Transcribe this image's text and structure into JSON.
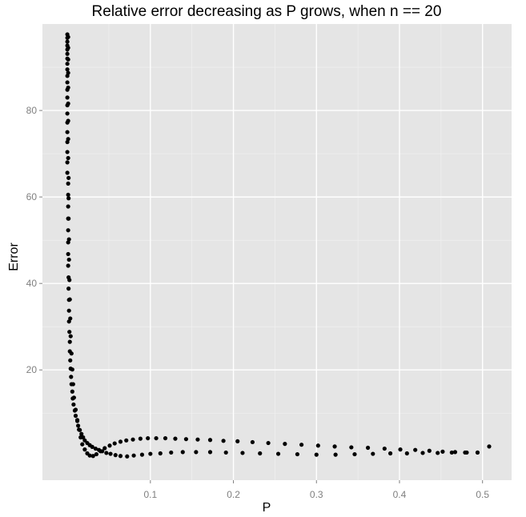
{
  "chart_data": {
    "type": "scatter",
    "title": "Relative error decreasing as P grows, when n == 20",
    "xlabel": "P",
    "ylabel": "Error",
    "xlim": [
      -0.03,
      0.535
    ],
    "ylim": [
      -5.5,
      100
    ],
    "xticks": [
      0.1,
      0.2,
      0.3,
      0.4,
      0.5
    ],
    "xtick_labels": [
      "0.1",
      "0.2",
      "0.3",
      "0.4",
      "0.5"
    ],
    "yticks": [
      20,
      40,
      60,
      80
    ],
    "ytick_labels": [
      "20",
      "40",
      "60",
      "80"
    ],
    "grid": true,
    "background": "#e5e5e5",
    "grid_color": "#ffffff",
    "point_color": "#000000",
    "series": [
      {
        "points": [
          [
            0.0,
            97.6
          ],
          [
            0.0,
            96.8
          ],
          [
            0.0,
            95.9
          ],
          [
            0.0,
            95.0
          ],
          [
            0.0,
            94.1
          ],
          [
            0.0,
            93.1
          ],
          [
            0.0,
            92.0
          ],
          [
            0.0,
            90.8
          ],
          [
            0.0,
            89.5
          ],
          [
            0.0,
            88.0
          ],
          [
            0.0,
            86.5
          ],
          [
            0.0,
            84.8
          ],
          [
            0.0,
            83.0
          ],
          [
            0.0,
            81.2
          ],
          [
            0.0,
            79.3
          ],
          [
            0.0,
            77.2
          ],
          [
            0.0,
            75.0
          ],
          [
            0.0,
            72.7
          ],
          [
            0.0,
            70.4
          ],
          [
            0.0,
            68.0
          ],
          [
            0.0,
            65.6
          ],
          [
            0.001,
            63.1
          ],
          [
            0.001,
            60.5
          ],
          [
            0.001,
            57.8
          ],
          [
            0.001,
            55.0
          ],
          [
            0.001,
            52.3
          ],
          [
            0.001,
            49.5
          ],
          [
            0.001,
            46.8
          ],
          [
            0.001,
            44.1
          ],
          [
            0.0015,
            41.4
          ],
          [
            0.0015,
            38.8
          ],
          [
            0.002,
            36.2
          ],
          [
            0.002,
            33.7
          ],
          [
            0.002,
            31.2
          ],
          [
            0.0025,
            28.8
          ],
          [
            0.003,
            26.5
          ],
          [
            0.003,
            24.3
          ],
          [
            0.0035,
            22.2
          ],
          [
            0.004,
            20.3
          ],
          [
            0.0045,
            18.4
          ],
          [
            0.005,
            16.7
          ],
          [
            0.006,
            15.0
          ],
          [
            0.0065,
            13.4
          ],
          [
            0.0075,
            12.0
          ],
          [
            0.009,
            10.6
          ],
          [
            0.01,
            9.4
          ],
          [
            0.012,
            8.2
          ],
          [
            0.013,
            7.1
          ],
          [
            0.015,
            6.1
          ],
          [
            0.017,
            5.2
          ],
          [
            0.019,
            4.4
          ],
          [
            0.021,
            3.7
          ],
          [
            0.024,
            3.1
          ],
          [
            0.027,
            2.6
          ],
          [
            0.03,
            2.2
          ],
          [
            0.034,
            1.8
          ],
          [
            0.038,
            1.5
          ],
          [
            0.042,
            1.2
          ],
          [
            0.047,
            0.8
          ],
          [
            0.052,
            0.6
          ],
          [
            0.058,
            0.3
          ],
          [
            0.064,
            0.1
          ],
          [
            0.072,
            0.0
          ],
          [
            0.08,
            0.2
          ],
          [
            0.09,
            0.4
          ],
          [
            0.1,
            0.6
          ],
          [
            0.112,
            0.7
          ],
          [
            0.125,
            0.9
          ],
          [
            0.139,
            1.0
          ],
          [
            0.155,
            1.0
          ],
          [
            0.172,
            1.0
          ],
          [
            0.191,
            0.9
          ],
          [
            0.211,
            0.8
          ],
          [
            0.232,
            0.7
          ],
          [
            0.254,
            0.6
          ],
          [
            0.277,
            0.5
          ],
          [
            0.3,
            0.4
          ],
          [
            0.323,
            0.4
          ],
          [
            0.346,
            0.5
          ],
          [
            0.368,
            0.6
          ],
          [
            0.389,
            0.7
          ],
          [
            0.409,
            0.7
          ],
          [
            0.428,
            0.8
          ],
          [
            0.446,
            0.8
          ],
          [
            0.463,
            0.9
          ],
          [
            0.479,
            0.9
          ],
          [
            0.494,
            0.9
          ]
        ]
      },
      {
        "points": [
          [
            0.001,
            97.0
          ],
          [
            0.001,
            94.5
          ],
          [
            0.001,
            91.8
          ],
          [
            0.001,
            88.7
          ],
          [
            0.001,
            85.3
          ],
          [
            0.001,
            81.6
          ],
          [
            0.001,
            77.6
          ],
          [
            0.001,
            73.4
          ],
          [
            0.001,
            69.0
          ],
          [
            0.0015,
            64.4
          ],
          [
            0.0015,
            59.7
          ],
          [
            0.0015,
            55.0
          ],
          [
            0.002,
            50.2
          ],
          [
            0.002,
            45.5
          ],
          [
            0.0025,
            40.8
          ],
          [
            0.003,
            36.3
          ],
          [
            0.0035,
            31.9
          ],
          [
            0.004,
            27.8
          ],
          [
            0.005,
            23.8
          ],
          [
            0.006,
            20.1
          ],
          [
            0.007,
            16.7
          ],
          [
            0.008,
            13.6
          ],
          [
            0.01,
            10.8
          ],
          [
            0.012,
            8.4
          ],
          [
            0.014,
            6.2
          ],
          [
            0.016,
            4.4
          ],
          [
            0.018,
            2.8
          ],
          [
            0.021,
            1.6
          ],
          [
            0.024,
            0.7
          ],
          [
            0.027,
            0.2
          ],
          [
            0.031,
            0.1
          ],
          [
            0.035,
            0.5
          ],
          [
            0.04,
            1.2
          ],
          [
            0.045,
            1.9
          ],
          [
            0.051,
            2.5
          ],
          [
            0.057,
            3.0
          ],
          [
            0.064,
            3.4
          ],
          [
            0.071,
            3.7
          ],
          [
            0.079,
            3.9
          ],
          [
            0.088,
            4.1
          ],
          [
            0.097,
            4.2
          ],
          [
            0.107,
            4.2
          ],
          [
            0.118,
            4.2
          ],
          [
            0.13,
            4.1
          ],
          [
            0.143,
            4.0
          ],
          [
            0.157,
            3.9
          ],
          [
            0.172,
            3.8
          ],
          [
            0.188,
            3.6
          ],
          [
            0.205,
            3.5
          ],
          [
            0.223,
            3.3
          ],
          [
            0.242,
            3.1
          ],
          [
            0.262,
            2.9
          ],
          [
            0.282,
            2.7
          ],
          [
            0.302,
            2.5
          ],
          [
            0.322,
            2.3
          ],
          [
            0.342,
            2.1
          ],
          [
            0.362,
            2.0
          ],
          [
            0.382,
            1.8
          ],
          [
            0.401,
            1.6
          ],
          [
            0.419,
            1.5
          ],
          [
            0.436,
            1.3
          ],
          [
            0.452,
            1.1
          ],
          [
            0.467,
            1.0
          ],
          [
            0.481,
            0.9
          ],
          [
            0.494,
            0.9
          ],
          [
            0.508,
            2.3
          ]
        ]
      }
    ]
  }
}
